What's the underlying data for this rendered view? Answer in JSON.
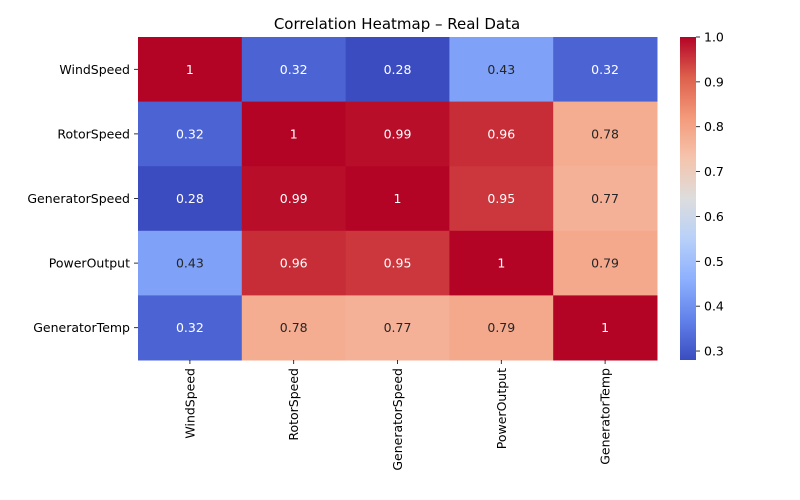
{
  "chart_data": {
    "type": "heatmap",
    "title": "Correlation Heatmap – Real Data",
    "x_categories": [
      "WindSpeed",
      "RotorSpeed",
      "GeneratorSpeed",
      "PowerOutput",
      "GeneratorTemp"
    ],
    "y_categories": [
      "WindSpeed",
      "RotorSpeed",
      "GeneratorSpeed",
      "PowerOutput",
      "GeneratorTemp"
    ],
    "values": [
      [
        1.0,
        0.32,
        0.28,
        0.43,
        0.32
      ],
      [
        0.32,
        1.0,
        0.99,
        0.96,
        0.78
      ],
      [
        0.28,
        0.99,
        1.0,
        0.95,
        0.77
      ],
      [
        0.43,
        0.96,
        0.95,
        1.0,
        0.79
      ],
      [
        0.32,
        0.78,
        0.77,
        0.79,
        1.0
      ]
    ],
    "cell_labels": [
      [
        "1",
        "0.32",
        "0.28",
        "0.43",
        "0.32"
      ],
      [
        "0.32",
        "1",
        "0.99",
        "0.96",
        "0.78"
      ],
      [
        "0.28",
        "0.99",
        "1",
        "0.95",
        "0.77"
      ],
      [
        "0.43",
        "0.96",
        "0.95",
        "1",
        "0.79"
      ],
      [
        "0.32",
        "0.78",
        "0.77",
        "0.79",
        "1"
      ]
    ],
    "colormap": "coolwarm",
    "color_range": [
      0.28,
      1.0
    ],
    "colorbar_ticks": [
      0.3,
      0.4,
      0.5,
      0.6,
      0.7,
      0.8,
      0.9,
      1.0
    ],
    "colorbar_tick_labels": [
      "0.3",
      "0.4",
      "0.5",
      "0.6",
      "0.7",
      "0.8",
      "0.9",
      "1.0"
    ],
    "colorbar_placement": "right",
    "grid": false
  }
}
